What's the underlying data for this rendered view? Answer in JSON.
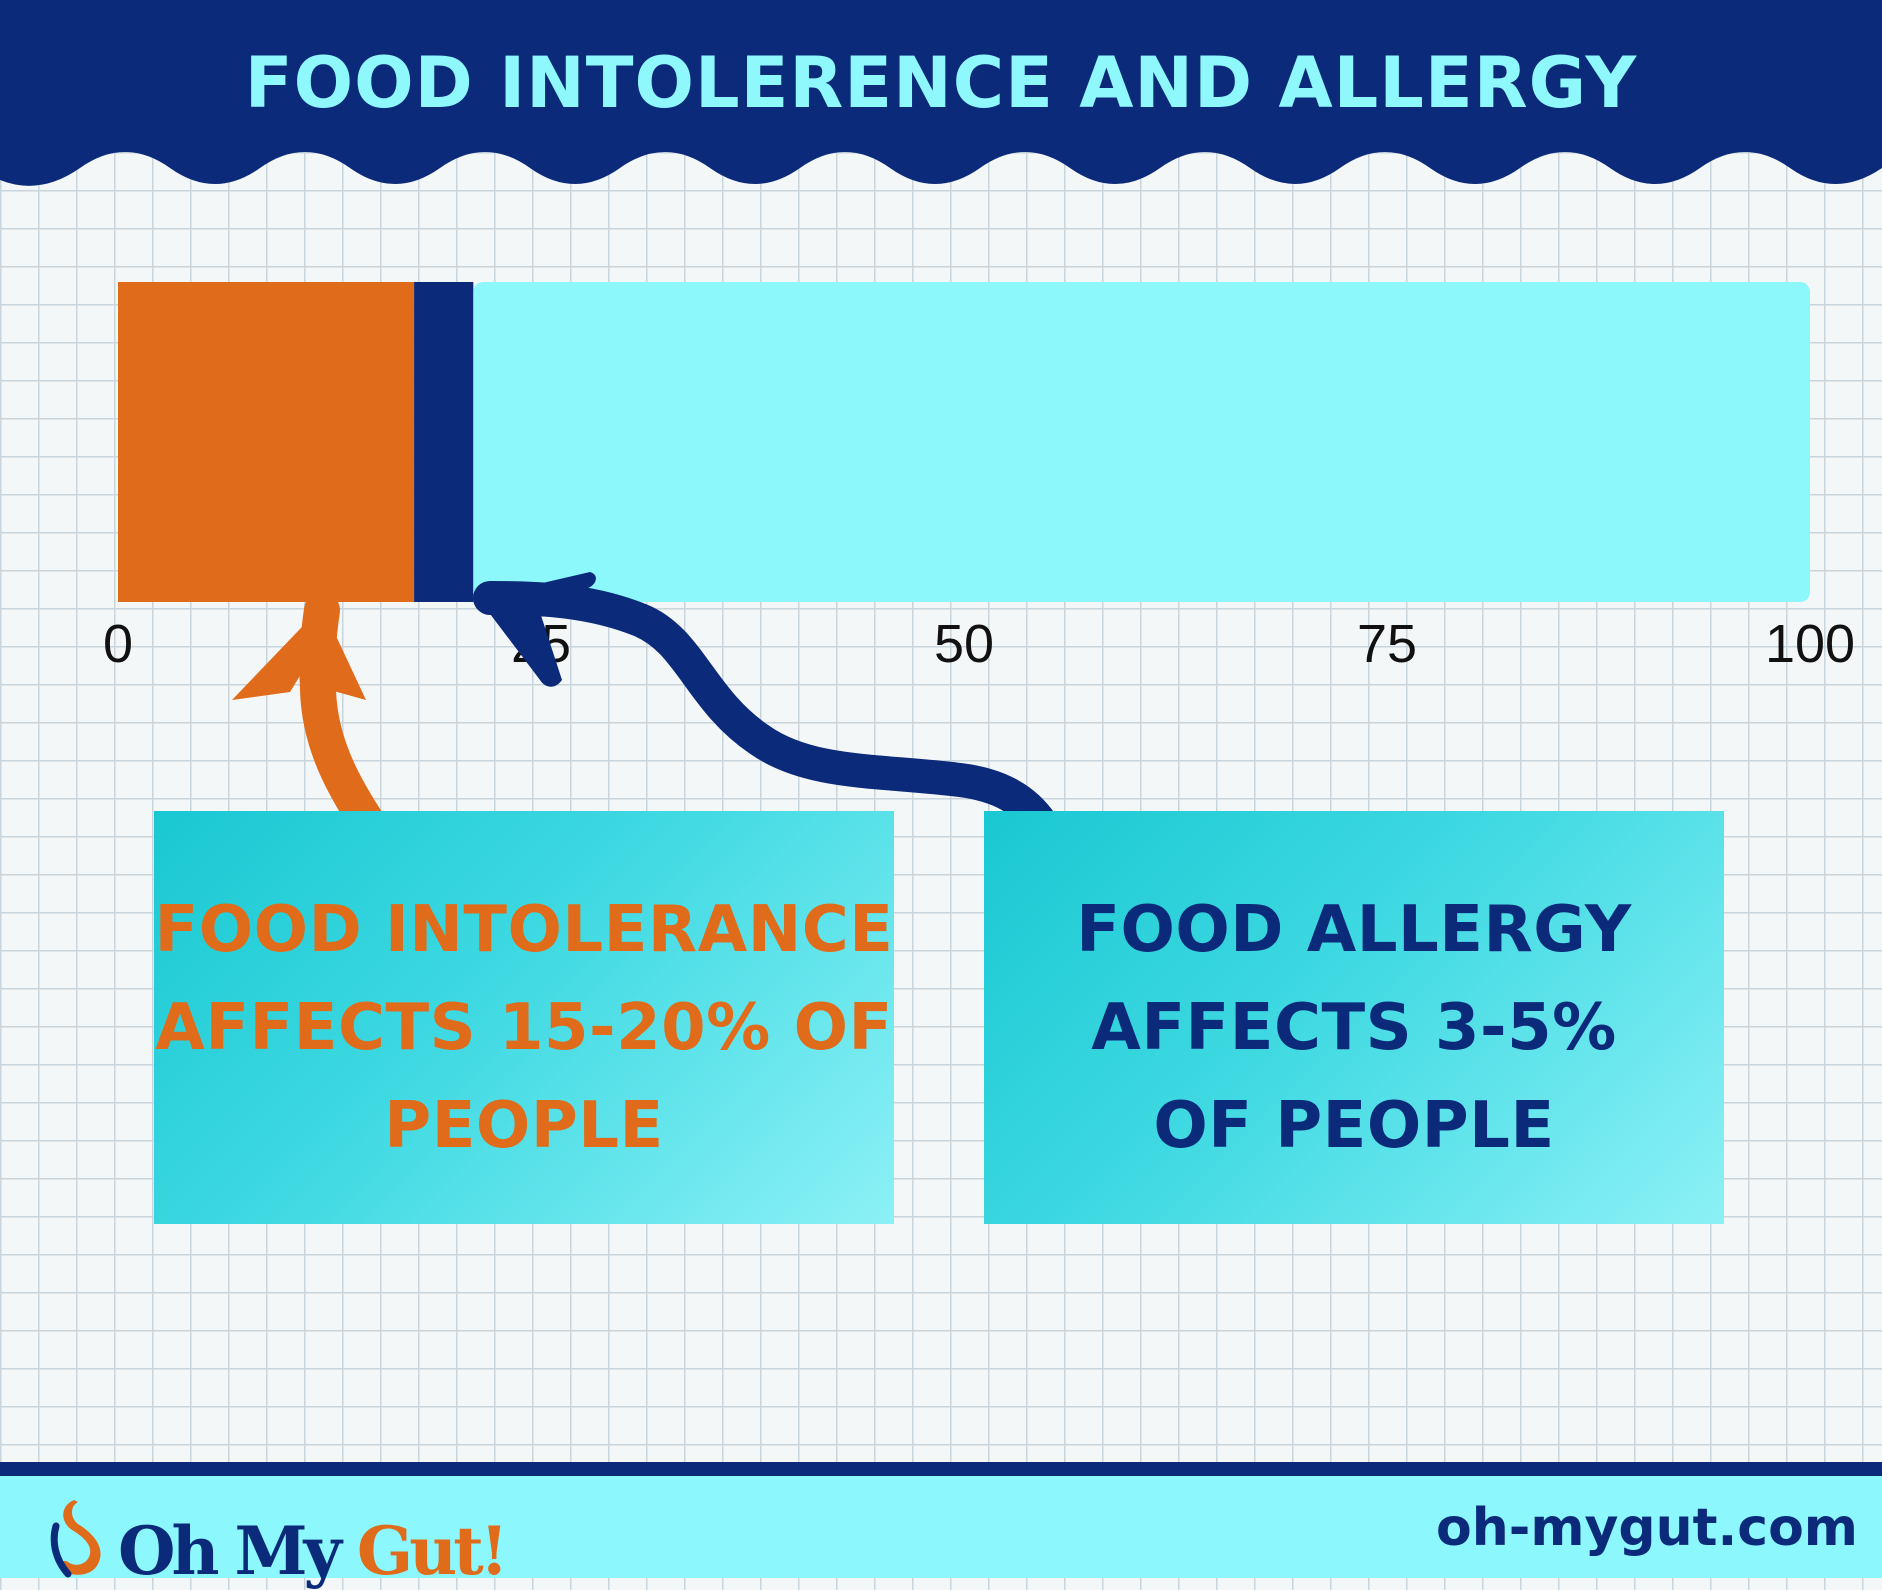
{
  "header": {
    "title": "FOOD INTOLERENCE AND ALLERGY"
  },
  "chart_data": {
    "type": "bar",
    "orientation": "horizontal",
    "stacked": true,
    "xlim": [
      0,
      100
    ],
    "ticks": [
      0,
      25,
      50,
      75,
      100
    ],
    "tick_labels": [
      "0",
      "25",
      "50",
      "75",
      "100"
    ],
    "segments": [
      {
        "value": 17.5,
        "color": "#e06b1a"
      },
      {
        "value": 3.5,
        "color": "#0c2a7a"
      },
      {
        "value": 79,
        "color": "#8cf8fc"
      }
    ]
  },
  "callouts": {
    "intolerance": {
      "lines": [
        "FOOD INTOLERANCE",
        "AFFECTS 15-20% OF",
        "PEOPLE"
      ],
      "color": "#e06b1a"
    },
    "allergy": {
      "lines": [
        "FOOD ALLERGY",
        "AFFECTS 3-5%",
        "OF PEOPLE"
      ],
      "color": "#0c2a7a"
    }
  },
  "footer": {
    "logo_oh": "Oh My",
    "logo_gut": "Gut!",
    "website": "oh-mygut.com"
  },
  "colors": {
    "navy": "#0c2a7a",
    "orange": "#e06b1a",
    "cyan": "#8cf8fc",
    "title_text": "#8ff8fd"
  }
}
